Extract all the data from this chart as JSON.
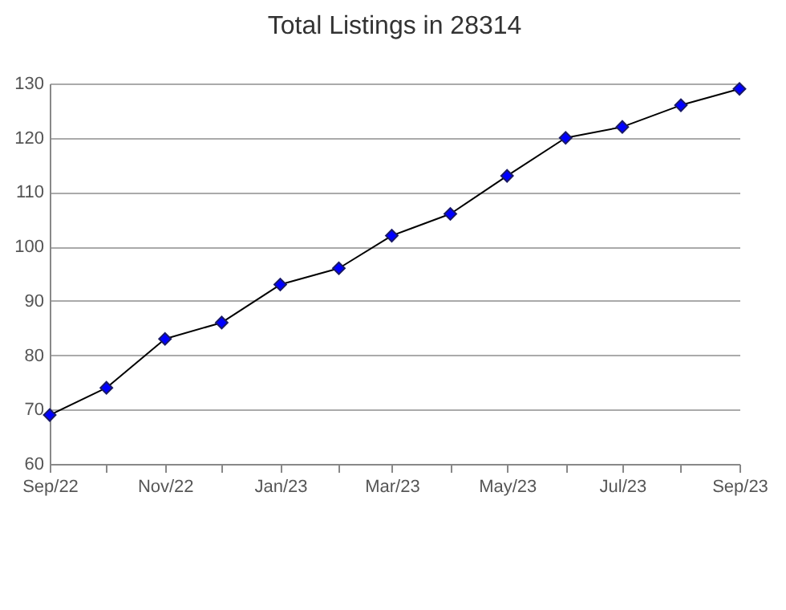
{
  "chart_data": {
    "type": "line",
    "title": "Total Listings in 28314",
    "x": [
      "2022-09",
      "2022-10",
      "2022-11",
      "2022-12",
      "2023-01",
      "2023-02",
      "2023-03",
      "2023-04",
      "2023-05",
      "2023-06",
      "2023-07",
      "2023-08",
      "2023-09"
    ],
    "series": [
      {
        "color": "#0000ff",
        "values": [
          69,
          74,
          83,
          86,
          93,
          96,
          102,
          106,
          113,
          120,
          122,
          126,
          129
        ]
      }
    ],
    "xlim": [
      "2022-09",
      "2023-09"
    ],
    "xticks": [
      {
        "value": "2022-09",
        "label": "Sep/22"
      },
      {
        "value": "2022-10",
        "label": null
      },
      {
        "value": "2022-11",
        "label": "Nov/22"
      },
      {
        "value": "2022-12",
        "label": null
      },
      {
        "value": "2023-01",
        "label": "Jan/23"
      },
      {
        "value": "2023-02",
        "label": null
      },
      {
        "value": "2023-03",
        "label": "Mar/23"
      },
      {
        "value": "2023-04",
        "label": null
      },
      {
        "value": "2023-05",
        "label": "May/23"
      },
      {
        "value": "2023-06",
        "label": null
      },
      {
        "value": "2023-07",
        "label": "Jul/23"
      },
      {
        "value": "2023-08",
        "label": null
      },
      {
        "value": "2023-09",
        "label": "Sep/23"
      }
    ],
    "ylim": [
      60,
      130
    ],
    "yticks": [
      60,
      70,
      80,
      90,
      100,
      110,
      120,
      130
    ],
    "grid": "y",
    "marker": "diamond",
    "line_style": "solid"
  }
}
